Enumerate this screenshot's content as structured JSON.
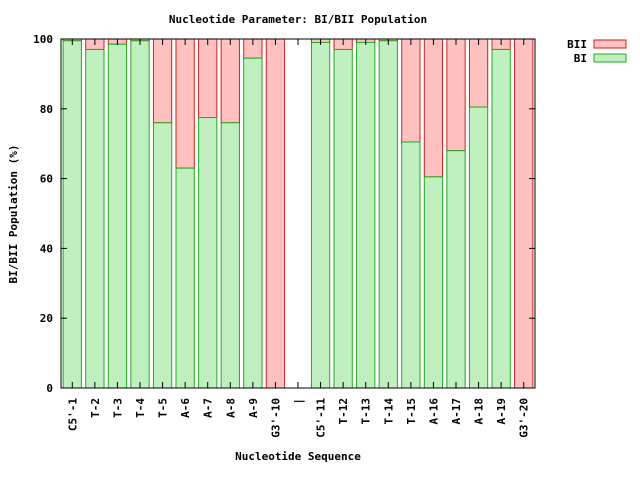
{
  "chart_data": {
    "type": "bar",
    "stacked": true,
    "title": "Nucleotide Parameter: BI/BII Population",
    "xlabel": "Nucleotide Sequence",
    "ylabel": "BI/BII Population (%)",
    "ylim": [
      0,
      100
    ],
    "yticks": [
      "0",
      "20",
      "40",
      "60",
      "80",
      "100"
    ],
    "grid": false,
    "legend_position": "top-right",
    "categories": [
      "C5'-1",
      "T-2",
      "T-3",
      "T-4",
      "T-5",
      "A-6",
      "A-7",
      "A-8",
      "A-9",
      "G3'-10",
      "|",
      "C5'-11",
      "T-12",
      "T-13",
      "T-14",
      "T-15",
      "A-16",
      "A-17",
      "A-18",
      "A-19",
      "G3'-20"
    ],
    "series": [
      {
        "name": "BI",
        "color": "#c0f0c0",
        "stroke": "#22aa22",
        "values": [
          99.5,
          97,
          98.5,
          99.5,
          76,
          63,
          77.5,
          76,
          94.5,
          0,
          null,
          99,
          97,
          99,
          99.5,
          70.5,
          60.5,
          68,
          80.5,
          97,
          0
        ]
      },
      {
        "name": "BII",
        "color": "#ffc0c0",
        "stroke": "#cc2222",
        "values": [
          0.5,
          3,
          1.5,
          0.5,
          24,
          37,
          22.5,
          24,
          5.5,
          100,
          null,
          1,
          3,
          1,
          0.5,
          29.5,
          39.5,
          32,
          19.5,
          3,
          100
        ]
      }
    ]
  }
}
